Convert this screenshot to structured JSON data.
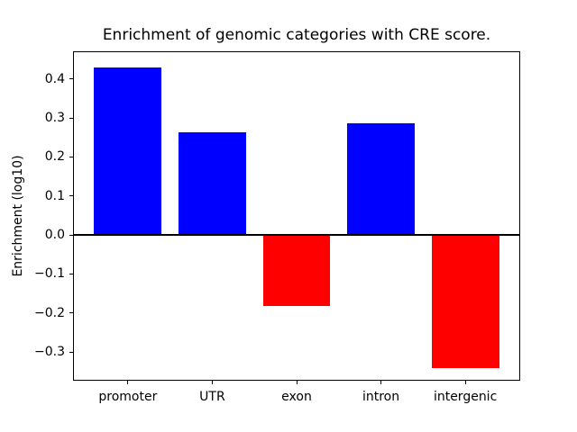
{
  "chart_data": {
    "type": "bar",
    "title": "Enrichment of genomic categories with CRE score.",
    "xlabel": "",
    "ylabel": "Enrichment (log10)",
    "categories": [
      "promoter",
      "UTR",
      "exon",
      "intron",
      "intergenic"
    ],
    "values": [
      0.43,
      0.262,
      -0.182,
      0.286,
      -0.341
    ],
    "bar_colors": [
      "#0000ff",
      "#0000ff",
      "#ff0000",
      "#0000ff",
      "#ff0000"
    ],
    "positive_color": "#0000ff",
    "negative_color": "#ff0000",
    "ylim": [
      -0.3715,
      0.4685
    ],
    "yticks": [
      0.4,
      0.3,
      0.2,
      0.1,
      0.0,
      -0.1,
      -0.2,
      -0.3
    ],
    "ytick_labels": [
      "0.4",
      "0.3",
      "0.2",
      "0.1",
      "0.0",
      "−0.1",
      "−0.2",
      "−0.3"
    ],
    "bar_width_fraction": 0.8,
    "x_margin_units": 0.64,
    "grid": false,
    "legend": null,
    "zero_line": true,
    "axis_color": "#000000",
    "background_color": "#ffffff"
  }
}
